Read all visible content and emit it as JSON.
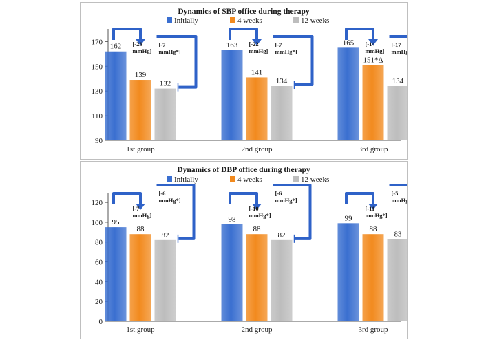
{
  "colors": {
    "initially": "#3a6fd0",
    "week4": "#f28a1e",
    "week12": "#bdbdbd",
    "arrow": "#2f62c8",
    "axis": "#555555",
    "gridline": "#e3e3e3"
  },
  "chart_data": [
    {
      "type": "bar",
      "title": "Dynamics of SBP office during therapy",
      "legend_placement": "top",
      "categories": [
        "1st group",
        "2nd group",
        "3rd group"
      ],
      "series": [
        {
          "name": "Initially",
          "values": [
            162,
            163,
            165
          ]
        },
        {
          "name": "4 weeks",
          "values": [
            139,
            141,
            151
          ]
        },
        {
          "name": "12 weeks",
          "values": [
            132,
            134,
            134
          ]
        }
      ],
      "value_labels": [
        [
          "162",
          "139",
          "132"
        ],
        [
          "163",
          "141",
          "134"
        ],
        [
          "165",
          "151*Δ",
          "134"
        ]
      ],
      "annotations": [
        {
          "first": [
            "[-23",
            "mmHg]"
          ],
          "second": [
            "[-7",
            "mmHg*]"
          ]
        },
        {
          "first": [
            "[-22",
            "mmHg]"
          ],
          "second": [
            "[-7",
            "mmHg*]"
          ]
        },
        {
          "first": [
            "[-14",
            "mmHg]"
          ],
          "second": [
            "[-17",
            "mmHg*]"
          ]
        }
      ],
      "yticks": [
        90,
        110,
        130,
        150,
        170
      ],
      "ylim": [
        90,
        178
      ],
      "grid": false
    },
    {
      "type": "bar",
      "title": "Dynamics of DBP office during therapy",
      "legend_placement": "top",
      "categories": [
        "1st group",
        "2nd group",
        "3rd group"
      ],
      "series": [
        {
          "name": "Initially",
          "values": [
            95,
            98,
            99
          ]
        },
        {
          "name": "4 weeks",
          "values": [
            88,
            88,
            88
          ]
        },
        {
          "name": "12 weeks",
          "values": [
            82,
            82,
            83
          ]
        }
      ],
      "value_labels": [
        [
          "95",
          "88",
          "82"
        ],
        [
          "98",
          "88",
          "82"
        ],
        [
          "99",
          "88",
          "83"
        ]
      ],
      "annotations": [
        {
          "first": [
            "[-7",
            "mmHg]"
          ],
          "second": [
            "[-6",
            "mmHg*]"
          ]
        },
        {
          "first": [
            "[-10",
            "mmHg*]"
          ],
          "second": [
            "[-6",
            "mmHg*]"
          ]
        },
        {
          "first": [
            "[-11",
            "mmHg*]"
          ],
          "second": [
            "[-5",
            "mmHg*]"
          ]
        }
      ],
      "yticks": [
        0,
        20,
        40,
        60,
        80,
        100,
        120
      ],
      "ylim": [
        0,
        127
      ],
      "grid": false
    }
  ]
}
